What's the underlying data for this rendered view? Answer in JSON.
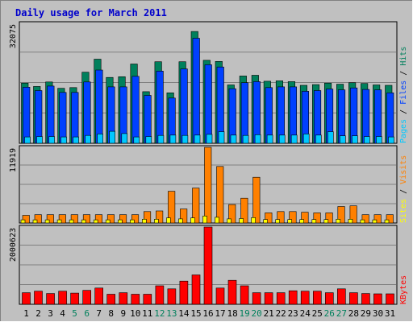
{
  "page_title": "Daily usage for March 2011",
  "colors": {
    "background": "#c0c0c0",
    "border": "#808080",
    "title": "#0000cc",
    "hits": "#00805c",
    "files": "#0040ff",
    "pages": "#00c8ff",
    "visits": "#ff8000",
    "sites": "#ffff00",
    "kbytes": "#ff0000",
    "weekend_label": "#00805c",
    "weekday_label": "#000000"
  },
  "chart_data": [
    {
      "type": "bar",
      "title": "Daily usage for March 2011",
      "categories": [
        "1",
        "2",
        "3",
        "4",
        "5",
        "6",
        "7",
        "8",
        "9",
        "10",
        "11",
        "12",
        "13",
        "14",
        "15",
        "16",
        "17",
        "18",
        "19",
        "20",
        "21",
        "22",
        "23",
        "24",
        "25",
        "26",
        "27",
        "28",
        "29",
        "30",
        "31"
      ],
      "weekend_days": [
        "5",
        "6",
        "12",
        "13",
        "19",
        "20",
        "26",
        "27"
      ],
      "ylabel_parts": [
        "Pages",
        "Files",
        "Hits"
      ],
      "ymax_label": "32075",
      "ylim": [
        0,
        32075
      ],
      "series": [
        {
          "name": "Hits",
          "values": [
            16100,
            15200,
            16400,
            14700,
            14900,
            19000,
            22500,
            17600,
            17800,
            21200,
            13800,
            21800,
            13500,
            21800,
            29900,
            22200,
            21900,
            15600,
            18000,
            18200,
            16600,
            16700,
            16500,
            15500,
            15700,
            16100,
            15800,
            16200,
            16000,
            15600,
            15500
          ]
        },
        {
          "name": "Files",
          "values": [
            15000,
            14100,
            15300,
            13600,
            13600,
            16400,
            19600,
            15100,
            15100,
            17900,
            12800,
            19300,
            12100,
            19900,
            28100,
            21000,
            20400,
            14600,
            16200,
            16500,
            14900,
            15100,
            15100,
            13900,
            14100,
            14500,
            14300,
            14800,
            14400,
            14300,
            13500
          ]
        },
        {
          "name": "Pages",
          "values": [
            1700,
            1800,
            1800,
            1700,
            1700,
            2100,
            2500,
            3200,
            2600,
            1700,
            1800,
            2100,
            2200,
            2100,
            2200,
            2400,
            3100,
            2200,
            2100,
            2300,
            2200,
            2200,
            2200,
            2500,
            2200,
            3100,
            2000,
            2000,
            1800,
            1800,
            1700
          ]
        }
      ]
    },
    {
      "type": "bar",
      "categories": [
        "1",
        "2",
        "3",
        "4",
        "5",
        "6",
        "7",
        "8",
        "9",
        "10",
        "11",
        "12",
        "13",
        "14",
        "15",
        "16",
        "17",
        "18",
        "19",
        "20",
        "21",
        "22",
        "23",
        "24",
        "25",
        "26",
        "27",
        "28",
        "29",
        "30",
        "31"
      ],
      "ylabel_parts": [
        "Sites",
        "Visits"
      ],
      "ymax_label": "11919",
      "ylim": [
        0,
        11919
      ],
      "series": [
        {
          "name": "Visits",
          "values": [
            1200,
            1300,
            1300,
            1300,
            1300,
            1300,
            1300,
            1300,
            1300,
            1300,
            1800,
            1900,
            5000,
            2200,
            5500,
            11919,
            8900,
            2900,
            3900,
            7200,
            1600,
            1800,
            1800,
            1700,
            1600,
            1600,
            2600,
            2700,
            1300,
            1300,
            1300
          ]
        },
        {
          "name": "Sites",
          "values": [
            500,
            500,
            500,
            500,
            500,
            500,
            500,
            500,
            500,
            500,
            600,
            600,
            800,
            650,
            800,
            1100,
            900,
            650,
            700,
            850,
            550,
            550,
            550,
            550,
            550,
            550,
            600,
            600,
            500,
            500,
            500
          ]
        }
      ]
    },
    {
      "type": "bar",
      "categories": [
        "1",
        "2",
        "3",
        "4",
        "5",
        "6",
        "7",
        "8",
        "9",
        "10",
        "11",
        "12",
        "13",
        "14",
        "15",
        "16",
        "17",
        "18",
        "19",
        "20",
        "21",
        "22",
        "23",
        "24",
        "25",
        "26",
        "27",
        "28",
        "29",
        "30",
        "31"
      ],
      "ylabel_parts": [
        "KBytes"
      ],
      "ymax_label": "2000623",
      "ylim": [
        0,
        2000623
      ],
      "series": [
        {
          "name": "KBytes",
          "values": [
            300000,
            340000,
            280000,
            340000,
            290000,
            360000,
            420000,
            260000,
            300000,
            260000,
            260000,
            480000,
            400000,
            600000,
            760000,
            2000623,
            420000,
            620000,
            480000,
            300000,
            300000,
            300000,
            350000,
            340000,
            340000,
            300000,
            400000,
            300000,
            280000,
            270000,
            270000
          ]
        }
      ]
    }
  ]
}
